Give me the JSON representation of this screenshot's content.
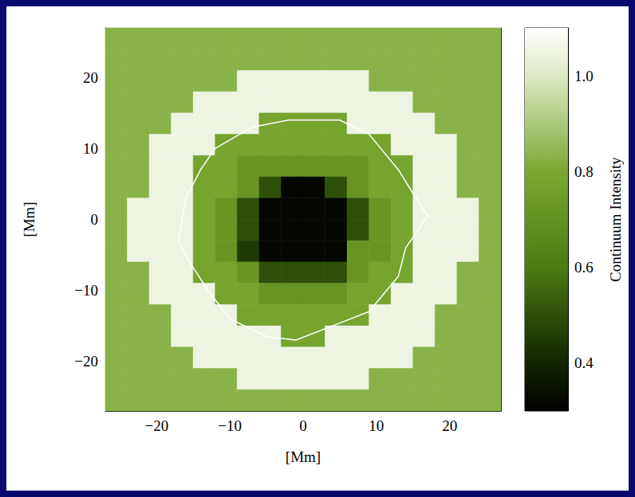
{
  "chart_data": {
    "type": "heatmap",
    "xlabel": "[Mm]",
    "ylabel": "[Mm]",
    "xlim": [
      -27,
      27
    ],
    "ylim": [
      -27,
      27
    ],
    "xticks": [
      {
        "value": -20,
        "label": "−20"
      },
      {
        "value": -10,
        "label": "−10"
      },
      0,
      10,
      20
    ],
    "yticks": [
      {
        "value": -20,
        "label": "−20"
      },
      {
        "value": -10,
        "label": "−10"
      },
      0,
      10,
      20
    ],
    "x": [
      -25.5,
      -22.5,
      -19.5,
      -16.5,
      -13.5,
      -10.5,
      -7.5,
      -4.5,
      -1.5,
      1.5,
      4.5,
      7.5,
      10.5,
      13.5,
      16.5,
      19.5,
      22.5,
      25.5
    ],
    "y": [
      25.5,
      22.5,
      19.5,
      16.5,
      13.5,
      10.5,
      7.5,
      4.5,
      1.5,
      -1.5,
      -4.5,
      -7.5,
      -10.5,
      -13.5,
      -16.5,
      -19.5,
      -22.5,
      -25.5
    ],
    "values": [
      [
        0.83,
        0.83,
        0.83,
        0.83,
        0.83,
        0.83,
        0.83,
        0.83,
        0.83,
        0.83,
        0.83,
        0.83,
        0.83,
        0.83,
        0.83,
        0.83,
        0.83,
        0.83
      ],
      [
        0.83,
        0.83,
        0.83,
        0.83,
        0.83,
        0.83,
        0.83,
        0.83,
        0.83,
        0.83,
        0.83,
        0.83,
        0.83,
        0.83,
        0.83,
        0.83,
        0.83,
        0.83
      ],
      [
        0.83,
        0.83,
        0.83,
        0.83,
        0.83,
        0.83,
        1.05,
        1.05,
        1.05,
        1.05,
        1.05,
        1.05,
        0.83,
        0.83,
        0.83,
        0.83,
        0.83,
        0.83
      ],
      [
        0.83,
        0.83,
        0.83,
        0.83,
        1.05,
        1.05,
        1.05,
        1.05,
        1.05,
        1.05,
        1.05,
        1.05,
        1.05,
        1.05,
        0.83,
        0.83,
        0.83,
        0.83
      ],
      [
        0.83,
        0.83,
        0.83,
        1.05,
        1.05,
        1.05,
        1.05,
        0.78,
        0.78,
        0.78,
        0.78,
        1.05,
        1.05,
        1.05,
        1.05,
        0.83,
        0.83,
        0.83
      ],
      [
        0.83,
        0.83,
        1.05,
        1.05,
        1.05,
        0.78,
        0.78,
        0.78,
        0.78,
        0.78,
        0.78,
        0.78,
        0.78,
        1.05,
        1.05,
        1.05,
        0.83,
        0.83
      ],
      [
        0.83,
        0.83,
        1.05,
        1.05,
        0.78,
        0.78,
        0.72,
        0.72,
        0.72,
        0.72,
        0.72,
        0.72,
        0.78,
        0.78,
        1.05,
        1.05,
        0.83,
        0.83
      ],
      [
        0.83,
        0.83,
        1.05,
        1.05,
        0.78,
        0.78,
        0.72,
        0.5,
        0.32,
        0.32,
        0.5,
        0.72,
        0.78,
        0.78,
        1.05,
        1.05,
        0.83,
        0.83
      ],
      [
        0.83,
        1.05,
        1.05,
        1.05,
        0.78,
        0.72,
        0.5,
        0.32,
        0.32,
        0.32,
        0.32,
        0.5,
        0.72,
        0.78,
        1.05,
        1.05,
        1.05,
        0.83
      ],
      [
        0.83,
        1.05,
        1.05,
        1.05,
        0.78,
        0.72,
        0.5,
        0.32,
        0.32,
        0.32,
        0.32,
        0.5,
        0.72,
        0.78,
        1.05,
        1.05,
        1.05,
        0.83
      ],
      [
        0.83,
        1.05,
        1.05,
        1.05,
        0.78,
        0.72,
        0.45,
        0.32,
        0.32,
        0.32,
        0.32,
        0.72,
        0.72,
        0.78,
        1.05,
        1.05,
        1.05,
        0.83
      ],
      [
        0.83,
        0.83,
        1.05,
        1.05,
        0.78,
        0.78,
        0.72,
        0.5,
        0.5,
        0.5,
        0.5,
        0.72,
        0.78,
        0.78,
        1.05,
        1.05,
        0.83,
        0.83
      ],
      [
        0.83,
        0.83,
        1.05,
        1.05,
        1.05,
        0.78,
        0.78,
        0.72,
        0.72,
        0.72,
        0.72,
        0.78,
        0.78,
        1.05,
        1.05,
        1.05,
        0.83,
        0.83
      ],
      [
        0.83,
        0.83,
        0.83,
        1.05,
        1.05,
        1.05,
        0.78,
        0.78,
        0.78,
        0.78,
        0.78,
        0.78,
        1.05,
        1.05,
        1.05,
        0.83,
        0.83,
        0.83
      ],
      [
        0.83,
        0.83,
        0.83,
        1.05,
        1.05,
        1.05,
        1.05,
        1.05,
        0.78,
        0.78,
        1.05,
        1.05,
        1.05,
        1.05,
        1.05,
        0.83,
        0.83,
        0.83
      ],
      [
        0.83,
        0.83,
        0.83,
        0.83,
        1.05,
        1.05,
        1.05,
        1.05,
        1.05,
        1.05,
        1.05,
        1.05,
        1.05,
        1.05,
        0.83,
        0.83,
        0.83,
        0.83
      ],
      [
        0.83,
        0.83,
        0.83,
        0.83,
        0.83,
        0.83,
        1.05,
        1.05,
        1.05,
        1.05,
        1.05,
        1.05,
        0.83,
        0.83,
        0.83,
        0.83,
        0.83,
        0.83
      ],
      [
        0.83,
        0.83,
        0.83,
        0.83,
        0.83,
        0.83,
        0.83,
        0.83,
        0.83,
        0.83,
        0.83,
        0.83,
        0.83,
        0.83,
        0.83,
        0.83,
        0.83,
        0.83
      ]
    ],
    "colorbar": {
      "label": "Continuum Intensity",
      "clim": [
        0.3,
        1.1
      ],
      "ticks": [
        0.4,
        0.6,
        0.8,
        {
          "value": 1,
          "label": "1.0"
        }
      ]
    },
    "contour": {
      "color": "#ffffff",
      "x": [
        -2,
        5,
        9,
        13,
        16,
        17,
        14,
        13,
        9,
        4,
        -1,
        -5,
        -10,
        -13,
        -15.5,
        -17,
        -16,
        -14,
        -12,
        -7,
        -2
      ],
      "y": [
        14,
        14,
        12,
        7,
        2,
        0.5,
        -4,
        -8,
        -13,
        -15,
        -17,
        -16.5,
        -14,
        -10,
        -6,
        -3,
        3,
        7,
        10,
        13,
        14
      ]
    }
  }
}
